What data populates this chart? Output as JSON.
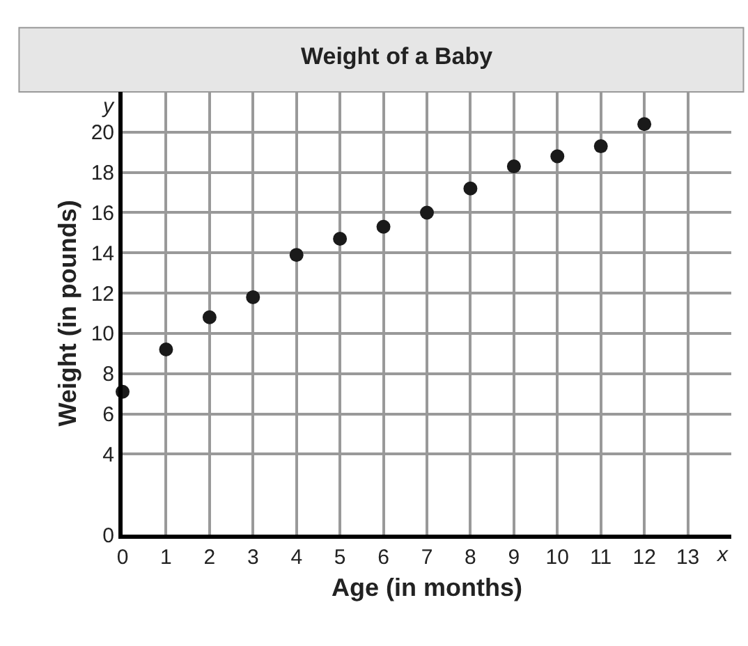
{
  "chart_data": {
    "type": "scatter",
    "title": "Weight of a Baby",
    "xlabel": "Age (in months)",
    "ylabel": "Weight (in pounds)",
    "x": [
      0,
      1,
      2,
      3,
      4,
      5,
      6,
      7,
      8,
      9,
      10,
      11,
      12
    ],
    "series": [
      {
        "color": "#1a1a1a",
        "values": [
          7.1,
          9.2,
          10.8,
          11.8,
          13.9,
          14.7,
          15.3,
          16.0,
          17.2,
          18.3,
          18.8,
          19.3,
          20.4
        ]
      }
    ],
    "xlim": [
      0,
      14
    ],
    "xticks": [
      0,
      1,
      2,
      3,
      4,
      5,
      6,
      7,
      8,
      9,
      10,
      11,
      12,
      13
    ],
    "ylim": [
      0,
      22
    ],
    "yticks": [
      0,
      4,
      6,
      8,
      10,
      12,
      14,
      16,
      18,
      20
    ],
    "annotations": [
      "y",
      "x"
    ],
    "grid": true,
    "marker": "circle"
  }
}
